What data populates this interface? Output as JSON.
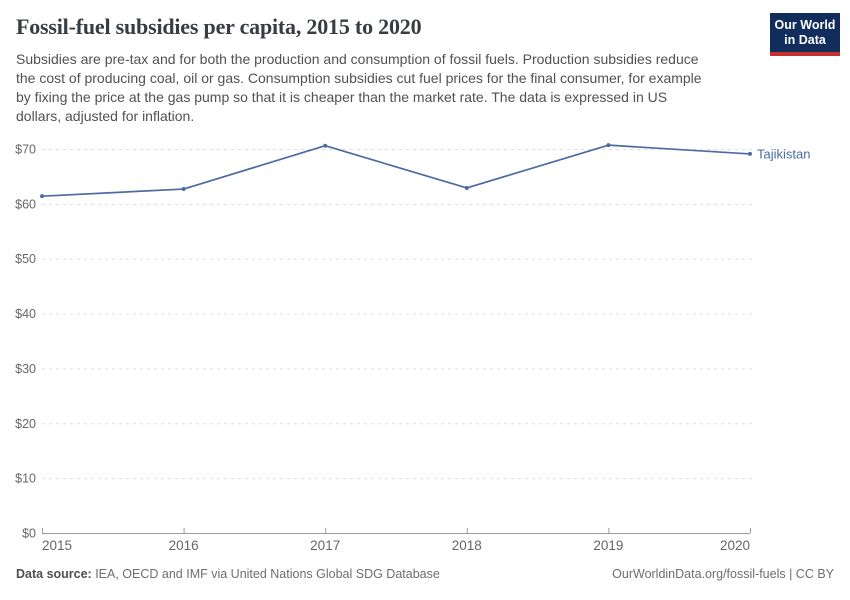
{
  "header": {
    "title": "Fossil-fuel subsidies per capita, 2015 to 2020",
    "subtitle_lines": [
      "Subsidies are pre-tax and for both the production and consumption of fossil fuels. Production subsidies reduce",
      "the cost of producing coal, oil or gas. Consumption subsidies cut fuel prices for the final consumer, for example",
      "by fixing the price at the gas pump so that it is cheaper than the market rate. The data is expressed in US",
      "dollars, adjusted for inflation."
    ],
    "logo": {
      "line1": "Our World",
      "line2": "in Data"
    }
  },
  "footer": {
    "source_prefix": "Data source:",
    "source_text": " IEA, OECD and IMF via United Nations Global SDG Database",
    "credit": "OurWorldinData.org/fossil-fuels | CC BY"
  },
  "colors": {
    "series": "#4c6ba3",
    "grid": "#dddddd",
    "axis": "#9a9a9a",
    "tick_text": "#666666",
    "logo_bg": "#102d5c",
    "logo_red": "#c52f2f"
  },
  "chart_data": {
    "type": "line",
    "title": "Fossil-fuel subsidies per capita, 2015 to 2020",
    "xlabel": "",
    "ylabel": "",
    "x": [
      2015,
      2016,
      2017,
      2018,
      2019,
      2020
    ],
    "x_labels": [
      "2015",
      "2016",
      "2017",
      "2018",
      "2019",
      "2020"
    ],
    "series": [
      {
        "name": "Tajikistan",
        "values": [
          61.4,
          62.7,
          70.6,
          62.9,
          70.7,
          69.1
        ]
      }
    ],
    "y_ticks": [
      {
        "value": 0,
        "label": "$0"
      },
      {
        "value": 10,
        "label": "$10"
      },
      {
        "value": 20,
        "label": "$20"
      },
      {
        "value": 30,
        "label": "$30"
      },
      {
        "value": 40,
        "label": "$40"
      },
      {
        "value": 50,
        "label": "$50"
      },
      {
        "value": 60,
        "label": "$60"
      },
      {
        "value": 70,
        "label": "$70"
      }
    ],
    "ylim": [
      0,
      70
    ],
    "grid": "horizontal-dashed",
    "legend": "label-at-line-end"
  }
}
